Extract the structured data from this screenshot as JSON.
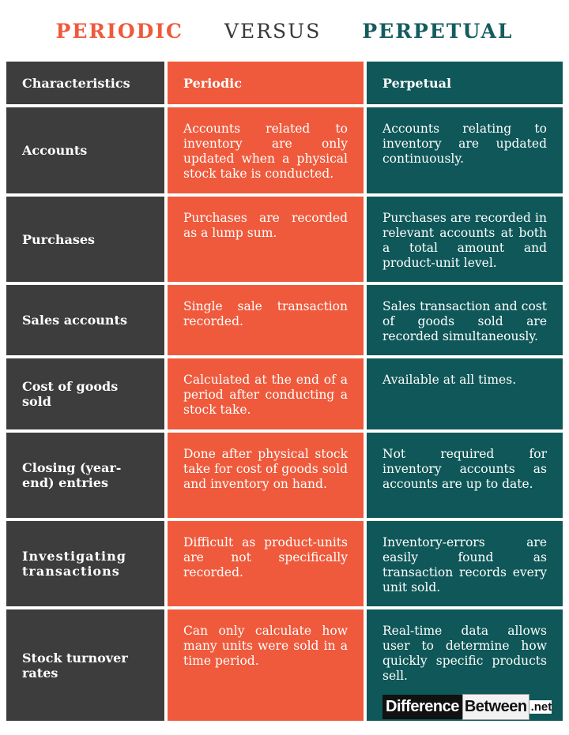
{
  "title": {
    "left": "PERIODIC",
    "middle": "VERSUS",
    "right": "PERPETUAL"
  },
  "colors": {
    "periodic": "#ef5a3c",
    "perpetual": "#0f5758",
    "characteristics": "#3d3d3d"
  },
  "table": {
    "headers": [
      "Characteristics",
      "Periodic",
      "Perpetual"
    ],
    "rows": [
      {
        "characteristic": "Accounts",
        "periodic": "Accounts related to inventory are only updated when a physical stock take is conducted.",
        "perpetual": "Accounts relating to inventory are updated continuously."
      },
      {
        "characteristic": "Purchases",
        "periodic": "Purchases are recorded as a lump sum.",
        "perpetual": "Purchases are recorded in relevant accounts at both a total amount and product-unit level."
      },
      {
        "characteristic": "Sales accounts",
        "periodic": "Single sale transaction recorded.",
        "perpetual": "Sales transaction and cost of goods sold are recorded simultaneously."
      },
      {
        "characteristic": "Cost of goods sold",
        "periodic": "Calculated at the end of a period after conducting a stock take.",
        "perpetual": "Available at all times."
      },
      {
        "characteristic": "Closing (year-end) entries",
        "periodic": "Done after physical stock take for cost of goods sold and inventory on hand.",
        "perpetual": "Not required for inventory accounts as accounts are up to date."
      },
      {
        "characteristic": "Investigating transactions",
        "periodic": "Difficult as product-units are not specifically recorded.",
        "perpetual": "Inventory-errors are easily found as transaction records every unit sold."
      },
      {
        "characteristic": "Stock turnover rates",
        "periodic": "Can only calculate how many units were sold in a time period.",
        "perpetual": "Real-time data allows user to determine how quickly specific products sell."
      }
    ]
  },
  "logo": {
    "part1": "Difference",
    "part2": "Between",
    "part3": ".net"
  }
}
